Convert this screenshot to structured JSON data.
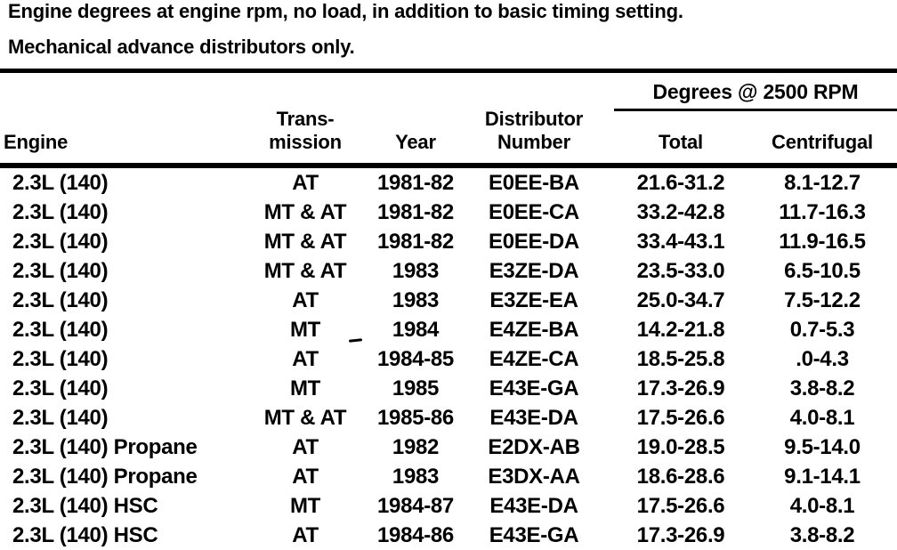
{
  "intro": {
    "line1": "Engine degrees at engine rpm, no load, in addition to basic timing setting.",
    "line2": "Mechanical advance distributors only."
  },
  "table": {
    "columns": [
      "engine",
      "transmission",
      "year",
      "distributor",
      "total",
      "centrifugal"
    ],
    "headers": {
      "engine": "Engine",
      "transmission": [
        "Trans-",
        "mission"
      ],
      "year": "Year",
      "distributor": [
        "Distributor",
        "Number"
      ],
      "degrees_group": "Degrees @ 2500 RPM",
      "total": "Total",
      "centrifugal": "Centrifugal"
    },
    "rows": [
      {
        "engine": "2.3L (140)",
        "transmission": "AT",
        "year": "1981-82",
        "distributor": "E0EE-BA",
        "total": "21.6-31.2",
        "centrifugal": "8.1-12.7"
      },
      {
        "engine": "2.3L (140)",
        "transmission": "MT & AT",
        "year": "1981-82",
        "distributor": "E0EE-CA",
        "total": "33.2-42.8",
        "centrifugal": "11.7-16.3"
      },
      {
        "engine": "2.3L (140)",
        "transmission": "MT & AT",
        "year": "1981-82",
        "distributor": "E0EE-DA",
        "total": "33.4-43.1",
        "centrifugal": "11.9-16.5"
      },
      {
        "engine": "2.3L (140)",
        "transmission": "MT & AT",
        "year": "1983",
        "distributor": "E3ZE-DA",
        "total": "23.5-33.0",
        "centrifugal": "6.5-10.5"
      },
      {
        "engine": "2.3L (140)",
        "transmission": "AT",
        "year": "1983",
        "distributor": "E3ZE-EA",
        "total": "25.0-34.7",
        "centrifugal": "7.5-12.2"
      },
      {
        "engine": "2.3L (140)",
        "transmission": "MT",
        "year": "1984",
        "distributor": "E4ZE-BA",
        "total": "14.2-21.8",
        "centrifugal": "0.7-5.3"
      },
      {
        "engine": "2.3L (140)",
        "transmission": "AT",
        "year": "1984-85",
        "distributor": "E4ZE-CA",
        "total": "18.5-25.8",
        "centrifugal": ".0-4.3"
      },
      {
        "engine": "2.3L (140)",
        "transmission": "MT",
        "year": "1985",
        "distributor": "E43E-GA",
        "total": "17.3-26.9",
        "centrifugal": "3.8-8.2"
      },
      {
        "engine": "2.3L (140)",
        "transmission": "MT & AT",
        "year": "1985-86",
        "distributor": "E43E-DA",
        "total": "17.5-26.6",
        "centrifugal": "4.0-8.1"
      },
      {
        "engine": "2.3L (140) Propane",
        "transmission": "AT",
        "year": "1982",
        "distributor": "E2DX-AB",
        "total": "19.0-28.5",
        "centrifugal": "9.5-14.0"
      },
      {
        "engine": "2.3L (140) Propane",
        "transmission": "AT",
        "year": "1983",
        "distributor": "E3DX-AA",
        "total": "18.6-28.6",
        "centrifugal": "9.1-14.1"
      },
      {
        "engine": "2.3L (140) HSC",
        "transmission": "MT",
        "year": "1984-87",
        "distributor": "E43E-DA",
        "total": "17.5-26.6",
        "centrifugal": "4.0-8.1"
      },
      {
        "engine": "2.3L (140) HSC",
        "transmission": "AT",
        "year": "1984-86",
        "distributor": "E43E-GA",
        "total": "17.3-26.9",
        "centrifugal": "3.8-8.2"
      }
    ]
  },
  "colors": {
    "ink": "#000000",
    "paper": "#ffffff"
  }
}
